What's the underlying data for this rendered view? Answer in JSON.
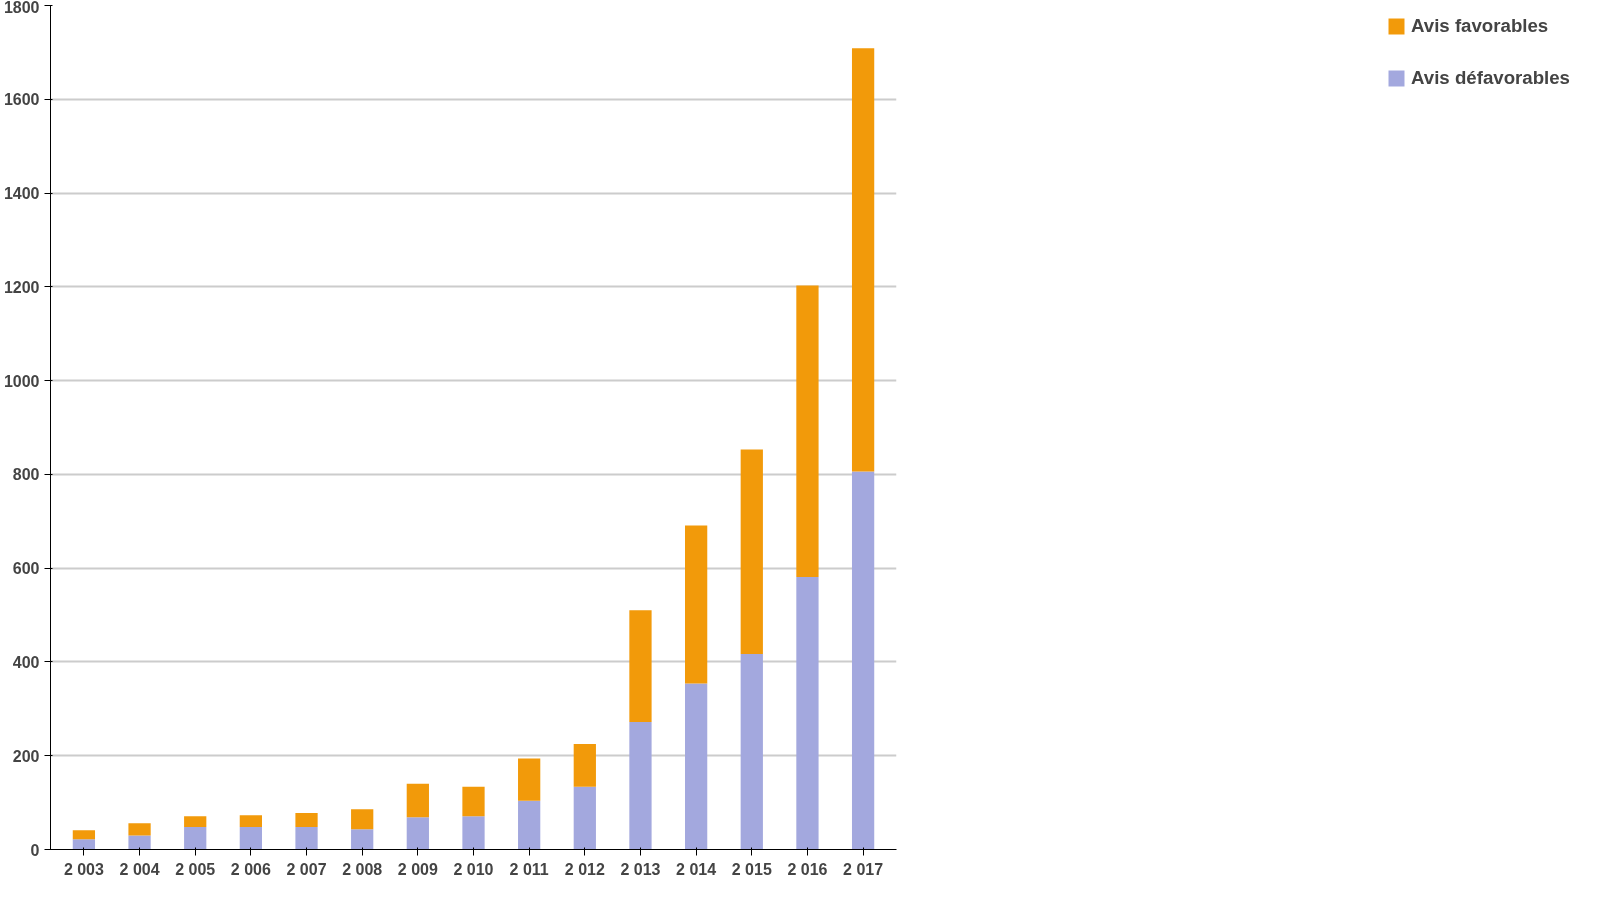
{
  "chart_data": {
    "type": "bar",
    "stacked": true,
    "categories": [
      "2 003",
      "2 004",
      "2 005",
      "2 006",
      "2 007",
      "2 008",
      "2 009",
      "2 010",
      "2 011",
      "2 012",
      "2 013",
      "2 014",
      "2 015",
      "2 016",
      "2 017"
    ],
    "series": [
      {
        "name": "Avis défavorables",
        "color": "#a3a8de",
        "values": [
          22,
          30,
          48,
          48,
          48,
          43,
          69,
          71,
          104,
          134,
          272,
          354,
          417,
          581,
          806
        ]
      },
      {
        "name": "Avis favorables",
        "color": "#f29a0a",
        "values": [
          19,
          26,
          23,
          25,
          30,
          43,
          71,
          63,
          90,
          91,
          238,
          337,
          436,
          622,
          903
        ]
      }
    ],
    "ylim": [
      0,
      1800
    ],
    "yticks": [
      0,
      200,
      400,
      600,
      800,
      1000,
      1200,
      1400,
      1600,
      1800
    ],
    "grid": "y",
    "legend": "right"
  }
}
